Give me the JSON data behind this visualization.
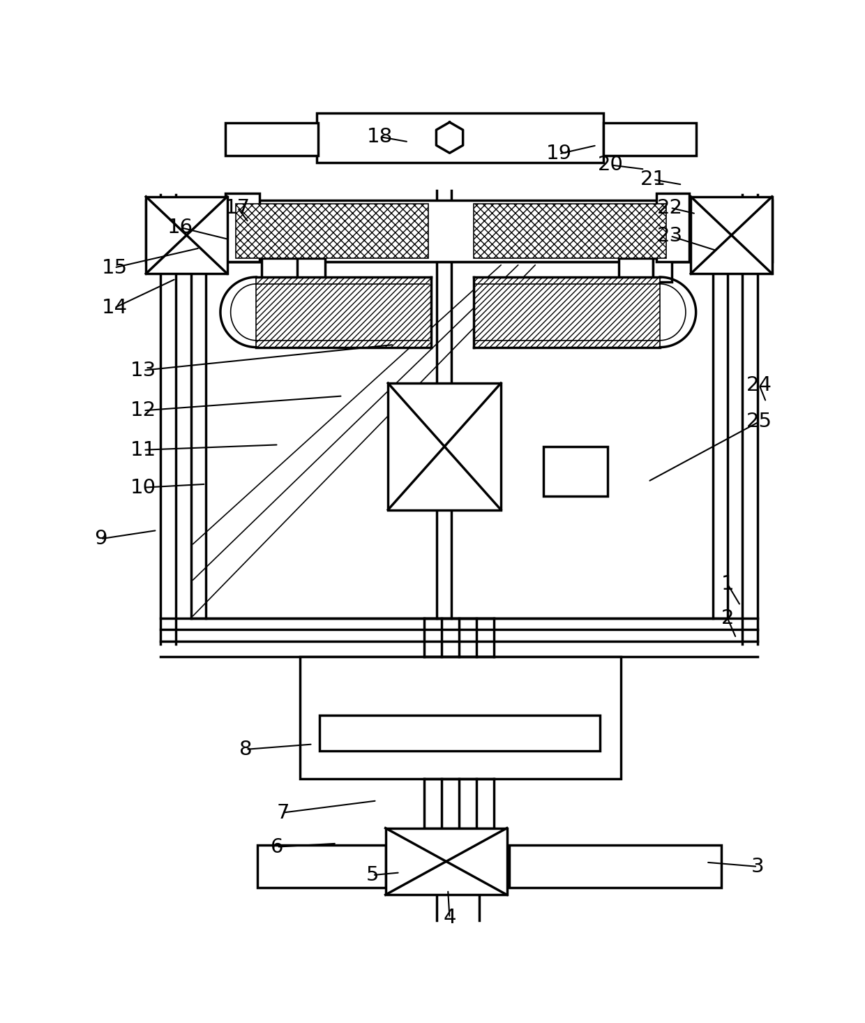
{
  "bg_color": "#ffffff",
  "lc": "#000000",
  "lw": 2.5,
  "lw_t": 1.2,
  "fs": 21,
  "leaders": {
    "1": {
      "lp": [
        0.845,
        0.415
      ],
      "tp": [
        0.86,
        0.39
      ]
    },
    "2": {
      "lp": [
        0.845,
        0.375
      ],
      "tp": [
        0.855,
        0.352
      ]
    },
    "3": {
      "lp": [
        0.88,
        0.085
      ],
      "tp": [
        0.82,
        0.09
      ]
    },
    "4": {
      "lp": [
        0.52,
        0.025
      ],
      "tp": [
        0.518,
        0.058
      ]
    },
    "5": {
      "lp": [
        0.43,
        0.075
      ],
      "tp": [
        0.462,
        0.078
      ]
    },
    "6": {
      "lp": [
        0.318,
        0.108
      ],
      "tp": [
        0.388,
        0.112
      ]
    },
    "7": {
      "lp": [
        0.325,
        0.148
      ],
      "tp": [
        0.435,
        0.162
      ]
    },
    "8": {
      "lp": [
        0.282,
        0.222
      ],
      "tp": [
        0.36,
        0.228
      ]
    },
    "9": {
      "lp": [
        0.112,
        0.468
      ],
      "tp": [
        0.178,
        0.478
      ]
    },
    "10": {
      "lp": [
        0.162,
        0.528
      ],
      "tp": [
        0.235,
        0.532
      ]
    },
    "11": {
      "lp": [
        0.162,
        0.572
      ],
      "tp": [
        0.32,
        0.578
      ]
    },
    "12": {
      "lp": [
        0.162,
        0.618
      ],
      "tp": [
        0.395,
        0.635
      ]
    },
    "13": {
      "lp": [
        0.162,
        0.665
      ],
      "tp": [
        0.455,
        0.695
      ]
    },
    "14": {
      "lp": [
        0.128,
        0.738
      ],
      "tp": [
        0.2,
        0.772
      ]
    },
    "15": {
      "lp": [
        0.128,
        0.785
      ],
      "tp": [
        0.228,
        0.808
      ]
    },
    "16": {
      "lp": [
        0.205,
        0.832
      ],
      "tp": [
        0.262,
        0.818
      ]
    },
    "17": {
      "lp": [
        0.272,
        0.855
      ],
      "tp": [
        0.285,
        0.838
      ]
    },
    "18": {
      "lp": [
        0.438,
        0.938
      ],
      "tp": [
        0.472,
        0.932
      ]
    },
    "19": {
      "lp": [
        0.648,
        0.918
      ],
      "tp": [
        0.692,
        0.928
      ]
    },
    "20": {
      "lp": [
        0.708,
        0.905
      ],
      "tp": [
        0.748,
        0.9
      ]
    },
    "21": {
      "lp": [
        0.758,
        0.888
      ],
      "tp": [
        0.792,
        0.882
      ]
    },
    "22": {
      "lp": [
        0.778,
        0.855
      ],
      "tp": [
        0.808,
        0.848
      ]
    },
    "23": {
      "lp": [
        0.778,
        0.822
      ],
      "tp": [
        0.832,
        0.805
      ]
    },
    "24": {
      "lp": [
        0.882,
        0.648
      ],
      "tp": [
        0.89,
        0.628
      ]
    },
    "25": {
      "lp": [
        0.882,
        0.605
      ],
      "tp": [
        0.752,
        0.535
      ]
    }
  }
}
